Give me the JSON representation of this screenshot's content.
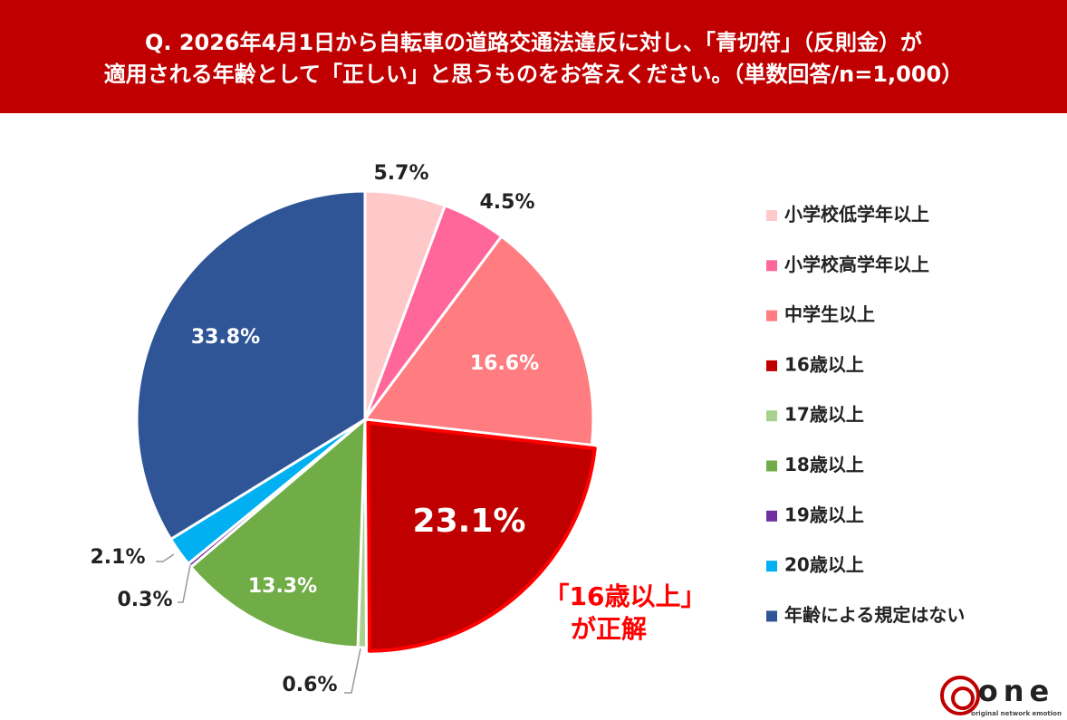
{
  "chart_data": {
    "type": "pie",
    "title": [
      "Q. 2026年4月1日から自転車の道路交通法違反に対し、「青切符」（反則金）が",
      "適用される年齢として「正しい」と思うものをお答えください。（単数回答/n=1,000）"
    ],
    "categories": [
      "小学校低学年以上",
      "小学校高学年以上",
      "中学生以上",
      "16歳以上",
      "17歳以上",
      "18歳以上",
      "19歳以上",
      "20歳以上",
      "年齢による規定はない"
    ],
    "values": [
      5.7,
      4.5,
      16.6,
      23.1,
      0.6,
      13.3,
      0.3,
      2.1,
      33.8
    ],
    "value_labels": [
      "5.7%",
      "4.5%",
      "16.6%",
      "23.1%",
      "0.6%",
      "13.3%",
      "0.3%",
      "2.1%",
      "33.8%"
    ],
    "colors": [
      "#ffc9c9",
      "#ff6699",
      "#ff7c80",
      "#c00000",
      "#a9d18e",
      "#70ad47",
      "#7030a0",
      "#00b0f0",
      "#2f5597"
    ],
    "annotations": [
      "「16歳以上」",
      "が正解"
    ],
    "legend": "right"
  },
  "logo": {
    "name": "one",
    "tagline": "original network emotion"
  }
}
